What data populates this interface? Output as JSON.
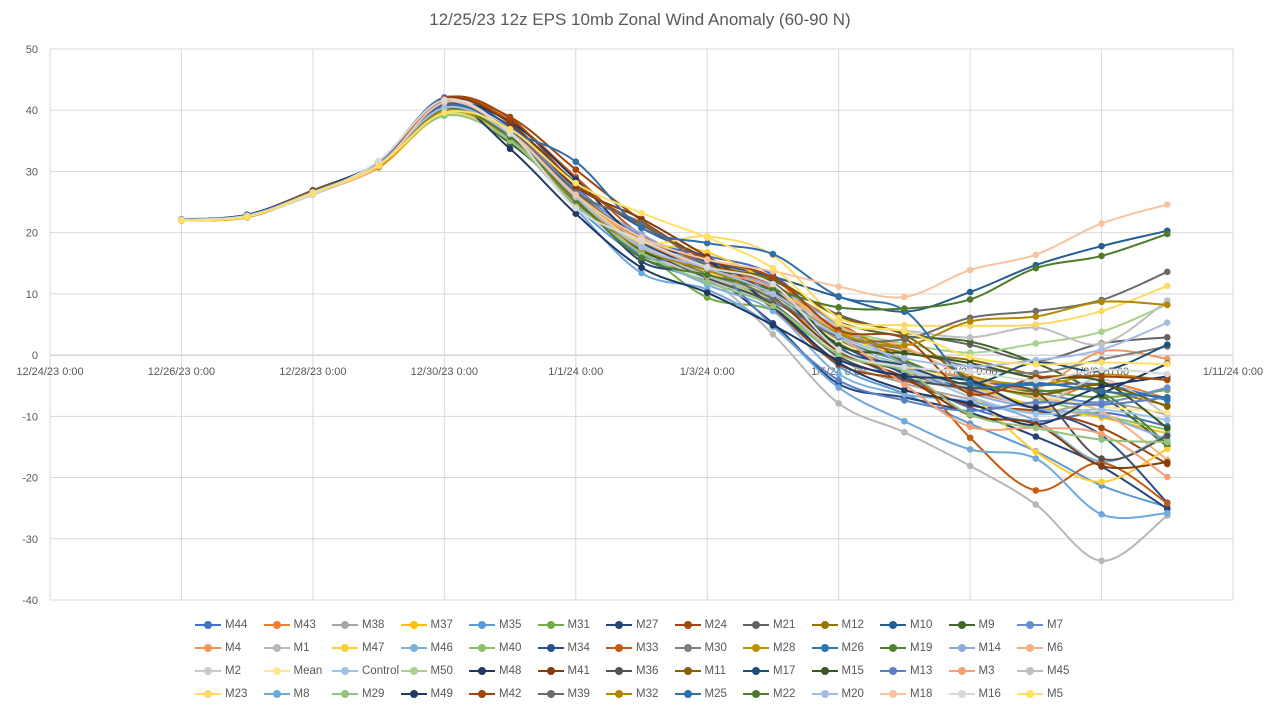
{
  "chart_data": {
    "type": "line",
    "title": "12/25/23 12z EPS 10mb Zonal Wind Anomaly (60-90 N)",
    "x_tick_labels": [
      "12/24/23 0:00",
      "12/26/23 0:00",
      "12/28/23 0:00",
      "12/30/23 0:00",
      "1/1/24 0:00",
      "1/3/24 0:00",
      "1/5/24 0:00",
      "1/7/24 0:00",
      "1/9/24 0:00",
      "1/11/24 0:00"
    ],
    "y_ticks": [
      -40,
      -30,
      -20,
      -10,
      0,
      10,
      20,
      30,
      40,
      50
    ],
    "xlim": [
      "12/24/23 0:00",
      "1/11/24 0:00"
    ],
    "ylim": [
      -40,
      50
    ],
    "grid": true,
    "legend_position": "bottom",
    "x": [
      "12/26/23 0:00",
      "12/27/23 0:00",
      "12/28/23 0:00",
      "12/29/23 0:00",
      "12/30/23 0:00",
      "12/31/23 0:00",
      "1/1/24 0:00",
      "1/2/24 0:00",
      "1/3/24 0:00",
      "1/4/24 0:00",
      "1/5/24 0:00",
      "1/6/24 0:00",
      "1/7/24 0:00",
      "1/8/24 0:00",
      "1/9/24 0:00",
      "1/10/24 0:00"
    ],
    "series": [
      {
        "name": "M44",
        "color": "#4472c4",
        "values": [
          22.2,
          22.9,
          26.8,
          31.6,
          42.1,
          37.2,
          27.4,
          19.1,
          16.2,
          13.1,
          3.3,
          -3.2,
          -8.6,
          -10.8,
          -9.4,
          -11.6
        ]
      },
      {
        "name": "M43",
        "color": "#ed7d31",
        "values": [
          22.0,
          22.6,
          26.6,
          30.8,
          40.6,
          36.8,
          26.9,
          18.4,
          14.7,
          12.5,
          2.6,
          -2.8,
          -5.9,
          -7.8,
          -4.6,
          -7.1
        ]
      },
      {
        "name": "M38",
        "color": "#a5a5a5",
        "values": [
          22.1,
          22.7,
          26.3,
          31.0,
          40.3,
          36.1,
          26.0,
          17.8,
          12.9,
          9.6,
          -0.5,
          -4.6,
          -7.2,
          -9.4,
          -7.8,
          -9.7
        ]
      },
      {
        "name": "M37",
        "color": "#ffc000",
        "values": [
          22.0,
          22.5,
          26.4,
          30.6,
          39.2,
          35.3,
          25.6,
          18.1,
          13.8,
          10.5,
          1.2,
          -2.7,
          -5.1,
          -8.3,
          -10.2,
          -12.8
        ]
      },
      {
        "name": "M35",
        "color": "#5b9bd5",
        "values": [
          22.1,
          22.8,
          26.5,
          31.2,
          40.1,
          35.9,
          24.3,
          15.9,
          12.1,
          8.4,
          -1.8,
          -6.3,
          -11.2,
          -15.7,
          -21.3,
          -24.8
        ]
      },
      {
        "name": "M31",
        "color": "#70ad47",
        "values": [
          22.0,
          22.6,
          26.3,
          30.9,
          39.3,
          35.1,
          24.8,
          17.2,
          9.4,
          7.3,
          0.2,
          -2.4,
          -3.8,
          -5.6,
          -6.9,
          -5.7
        ]
      },
      {
        "name": "M27",
        "color": "#264478",
        "values": [
          22.1,
          22.9,
          26.9,
          31.5,
          41.0,
          35.8,
          26.3,
          15.3,
          13.1,
          5.2,
          -4.7,
          -6.9,
          -9.4,
          -13.3,
          -18.2,
          -25.1
        ]
      },
      {
        "name": "M24",
        "color": "#9e480e",
        "values": [
          22.0,
          22.7,
          26.9,
          31.1,
          41.5,
          38.9,
          30.3,
          22.0,
          15.2,
          7.6,
          -1.5,
          -4.1,
          -8.2,
          -9.1,
          -11.9,
          -17.8
        ]
      },
      {
        "name": "M21",
        "color": "#636363",
        "values": [
          22.1,
          22.7,
          26.6,
          31.3,
          40.5,
          36.4,
          25.8,
          18.2,
          14.1,
          12.1,
          6.6,
          3.7,
          1.7,
          -0.9,
          1.9,
          2.9
        ]
      },
      {
        "name": "M12",
        "color": "#997300",
        "values": [
          22.0,
          22.6,
          26.5,
          30.9,
          40.0,
          35.7,
          25.1,
          17.5,
          13.4,
          10.0,
          3.5,
          0.4,
          -0.8,
          -3.3,
          -5.7,
          -8.2
        ]
      },
      {
        "name": "M10",
        "color": "#255e91",
        "values": [
          22.1,
          22.8,
          26.7,
          31.3,
          40.8,
          36.2,
          26.1,
          18.9,
          15.3,
          12.8,
          9.5,
          7.1,
          10.3,
          14.7,
          17.8,
          20.3
        ]
      },
      {
        "name": "M9",
        "color": "#43682b",
        "values": [
          22.0,
          22.7,
          26.5,
          31.0,
          40.1,
          34.6,
          25.3,
          15.9,
          13.6,
          11.2,
          5.4,
          3.1,
          2.2,
          -1.3,
          -6.6,
          -14.9
        ]
      },
      {
        "name": "M7",
        "color": "#698ed0",
        "values": [
          22.1,
          22.8,
          26.8,
          31.4,
          41.1,
          36.6,
          27.1,
          19.3,
          14.4,
          10.8,
          2.9,
          -1.2,
          -4.2,
          -6.1,
          -7.7,
          -5.3
        ]
      },
      {
        "name": "M4",
        "color": "#f1975a",
        "values": [
          22.0,
          22.6,
          26.4,
          30.7,
          39.8,
          35.6,
          25.7,
          18.6,
          13.2,
          8.9,
          1.7,
          -2.1,
          -3.5,
          -5.4,
          0.6,
          -0.6
        ]
      },
      {
        "name": "M1",
        "color": "#b7b7b7",
        "values": [
          22.1,
          22.7,
          26.2,
          31.1,
          40.4,
          35.8,
          25.2,
          16.4,
          12.7,
          3.4,
          -7.9,
          -12.6,
          -18.1,
          -24.4,
          -33.6,
          -26.2
        ]
      },
      {
        "name": "M47",
        "color": "#ffcd33",
        "values": [
          22.0,
          22.6,
          26.6,
          31.0,
          39.6,
          35.2,
          26.7,
          18.9,
          16.8,
          11.6,
          3.8,
          -0.7,
          -6.4,
          -15.8,
          -20.7,
          -15.3
        ]
      },
      {
        "name": "M46",
        "color": "#7cafdd",
        "values": [
          22.1,
          22.8,
          26.7,
          31.3,
          40.2,
          35.9,
          24.9,
          16.8,
          11.5,
          7.2,
          -3.1,
          -6.4,
          -7.6,
          -10.7,
          -17.4,
          -12.9
        ]
      },
      {
        "name": "M40",
        "color": "#8cc168",
        "values": [
          22.0,
          22.7,
          26.5,
          31.0,
          39.4,
          35.4,
          25.9,
          18.3,
          13.0,
          9.9,
          2.1,
          -1.6,
          -4.4,
          -7.1,
          -9.8,
          -12.2
        ]
      },
      {
        "name": "M34",
        "color": "#2e4f8d",
        "values": [
          22.1,
          22.9,
          26.8,
          31.4,
          40.9,
          37.5,
          28.2,
          20.8,
          15.8,
          9.7,
          1.9,
          -2.9,
          -5.6,
          -8.8,
          -13.1,
          -24.1
        ]
      },
      {
        "name": "M33",
        "color": "#c55a11",
        "values": [
          22.0,
          22.6,
          26.7,
          31.2,
          41.8,
          38.3,
          29.1,
          19.6,
          14.9,
          11.4,
          5.2,
          -1.4,
          -13.5,
          -22.1,
          -17.6,
          -24.2
        ]
      },
      {
        "name": "M30",
        "color": "#7f7f7f",
        "values": [
          22.1,
          22.7,
          26.3,
          31.1,
          40.3,
          36.0,
          25.4,
          17.3,
          13.3,
          8.7,
          3.1,
          0.9,
          -1.9,
          -2.9,
          -0.7,
          1.4
        ]
      },
      {
        "name": "M28",
        "color": "#bf9000",
        "values": [
          22.0,
          22.5,
          26.4,
          30.7,
          39.7,
          35.5,
          25.5,
          17.6,
          12.8,
          9.3,
          3.9,
          1.1,
          -3.4,
          -4.8,
          -3.2,
          -4.1
        ]
      },
      {
        "name": "M26",
        "color": "#2e75b6",
        "values": [
          22.1,
          22.8,
          26.6,
          31.2,
          40.7,
          36.1,
          26.8,
          18.7,
          13.9,
          10.1,
          1.4,
          -3.9,
          -4.6,
          -4.9,
          -4.8,
          -7.4
        ]
      },
      {
        "name": "M19",
        "color": "#548235",
        "values": [
          22.0,
          22.7,
          26.5,
          31.0,
          40.0,
          35.2,
          25.8,
          17.9,
          13.5,
          9.4,
          2.4,
          -0.9,
          -5.1,
          -5.9,
          -6.2,
          -14.5
        ]
      },
      {
        "name": "M14",
        "color": "#8faadc",
        "values": [
          22.1,
          22.8,
          26.7,
          31.3,
          41.2,
          36.6,
          26.4,
          19.8,
          14.3,
          11.3,
          4.9,
          -1.6,
          -6.2,
          -8.7,
          -9.9,
          -13.8
        ]
      },
      {
        "name": "M6",
        "color": "#f4b183",
        "values": [
          22.0,
          22.6,
          26.4,
          30.8,
          39.7,
          35.7,
          25.3,
          18.5,
          13.7,
          10.4,
          4.6,
          1.3,
          -3.7,
          -6.8,
          -9.2,
          -17.1
        ]
      },
      {
        "name": "M2",
        "color": "#c9c9c9",
        "values": [
          22.1,
          22.7,
          26.2,
          31.0,
          40.1,
          35.6,
          24.7,
          17.1,
          12.4,
          8.1,
          0.7,
          -2.3,
          -5.3,
          -8.1,
          -3.9,
          -9.8
        ]
      },
      {
        "name": "Mean",
        "color": "#ffe699",
        "values": [
          22.0,
          22.6,
          26.5,
          31.0,
          40.2,
          35.8,
          25.9,
          18.1,
          13.6,
          9.5,
          2.2,
          -1.8,
          -4.3,
          -6.5,
          -8.4,
          -9.3
        ]
      },
      {
        "name": "Control",
        "color": "#9dc3e6",
        "values": [
          22.1,
          22.8,
          26.6,
          31.2,
          40.5,
          36.3,
          25.7,
          18.3,
          14.0,
          10.3,
          2.8,
          -2.2,
          -6.8,
          -9.6,
          -8.9,
          -10.6
        ]
      },
      {
        "name": "M50",
        "color": "#a9d18e",
        "values": [
          22.0,
          22.6,
          26.4,
          30.9,
          39.5,
          35.3,
          25.1,
          17.8,
          12.9,
          9.1,
          4.3,
          1.9,
          0.4,
          1.9,
          3.8,
          8.3
        ]
      },
      {
        "name": "M48",
        "color": "#1f3864",
        "values": [
          22.1,
          22.9,
          26.9,
          31.5,
          40.9,
          38.1,
          28.7,
          18.6,
          15.4,
          7.9,
          -1.2,
          -5.7,
          -7.9,
          -11.4,
          -6.3,
          -1.4
        ]
      },
      {
        "name": "M41",
        "color": "#843c0c",
        "values": [
          22.0,
          22.7,
          26.8,
          31.3,
          41.7,
          37.9,
          27.5,
          22.3,
          16.1,
          9.5,
          0.6,
          -3.6,
          -9.8,
          -11.3,
          -18.1,
          -17.5
        ]
      },
      {
        "name": "M36",
        "color": "#525252",
        "values": [
          22.1,
          22.7,
          26.5,
          31.2,
          40.4,
          36.0,
          25.0,
          17.7,
          12.6,
          8.3,
          -0.2,
          -3.8,
          -5.4,
          -6.0,
          -16.9,
          -13.2
        ]
      },
      {
        "name": "M11",
        "color": "#806000",
        "values": [
          22.0,
          22.6,
          26.6,
          31.0,
          40.0,
          36.5,
          26.5,
          19.0,
          14.6,
          12.4,
          6.3,
          3.3,
          -3.9,
          -6.4,
          -4.9,
          -8.4
        ]
      },
      {
        "name": "M17",
        "color": "#1f4e79",
        "values": [
          22.1,
          22.8,
          26.7,
          31.4,
          40.6,
          36.2,
          25.6,
          18.4,
          13.9,
          10.6,
          1.0,
          -1.7,
          -4.7,
          -1.2,
          -2.6,
          1.7
        ]
      },
      {
        "name": "M15",
        "color": "#385723",
        "values": [
          22.0,
          22.7,
          26.6,
          31.1,
          40.3,
          35.4,
          26.2,
          17.1,
          14.0,
          11.8,
          1.6,
          0.3,
          -1.3,
          -3.7,
          -4.3,
          -11.9
        ]
      },
      {
        "name": "M13",
        "color": "#5b7fc4",
        "values": [
          22.1,
          22.8,
          26.7,
          31.3,
          41.0,
          36.7,
          26.1,
          16.3,
          14.8,
          4.8,
          -4.1,
          -7.4,
          -9.1,
          -7.7,
          -8.1,
          -6.9
        ]
      },
      {
        "name": "M3",
        "color": "#f4a074",
        "values": [
          22.0,
          22.6,
          26.4,
          30.7,
          39.9,
          35.5,
          25.6,
          18.7,
          14.1,
          10.9,
          3.4,
          -4.8,
          -11.7,
          -11.9,
          -12.9,
          -19.9
        ]
      },
      {
        "name": "M45",
        "color": "#bfbfbf",
        "values": [
          22.1,
          22.7,
          26.3,
          31.0,
          40.2,
          35.9,
          25.3,
          18.0,
          12.9,
          9.8,
          5.0,
          4.0,
          2.9,
          4.5,
          1.8,
          8.9
        ]
      },
      {
        "name": "M23",
        "color": "#ffd966",
        "values": [
          22.0,
          22.6,
          26.5,
          30.9,
          39.4,
          35.1,
          25.9,
          18.5,
          19.4,
          16.3,
          6.1,
          4.9,
          4.8,
          5.0,
          7.2,
          11.3
        ]
      },
      {
        "name": "M8",
        "color": "#6fa8dc",
        "values": [
          22.1,
          22.8,
          26.7,
          31.3,
          40.8,
          35.3,
          23.9,
          13.4,
          10.7,
          4.6,
          -5.3,
          -10.8,
          -15.4,
          -16.9,
          -26.0,
          -25.8
        ]
      },
      {
        "name": "M29",
        "color": "#93c47d",
        "values": [
          22.0,
          22.7,
          26.5,
          31.0,
          39.1,
          35.0,
          24.6,
          16.7,
          11.9,
          8.0,
          0.1,
          -2.6,
          -9.7,
          -11.9,
          -13.8,
          -14.2
        ]
      },
      {
        "name": "M49",
        "color": "#203864",
        "values": [
          22.1,
          22.9,
          26.8,
          31.5,
          41.3,
          33.7,
          23.1,
          14.3,
          10.2,
          4.9,
          -0.8,
          -3.4,
          -4.2,
          -8.6,
          -5.2,
          -3.5
        ]
      },
      {
        "name": "M42",
        "color": "#a0460a",
        "values": [
          22.0,
          22.7,
          26.9,
          31.2,
          41.9,
          38.7,
          28.0,
          21.3,
          15.7,
          12.7,
          4.1,
          2.7,
          -6.3,
          -3.7,
          -3.5,
          -4.0
        ]
      },
      {
        "name": "M39",
        "color": "#6b6b6b",
        "values": [
          22.1,
          22.7,
          26.4,
          31.1,
          40.7,
          36.8,
          26.6,
          21.6,
          14.5,
          9.2,
          3.0,
          2.6,
          6.1,
          7.2,
          9.0,
          13.6
        ]
      },
      {
        "name": "M32",
        "color": "#b38600",
        "values": [
          22.0,
          22.6,
          26.6,
          30.8,
          39.8,
          35.6,
          25.2,
          17.4,
          13.8,
          10.1,
          3.6,
          1.6,
          5.5,
          6.3,
          8.7,
          8.2
        ]
      },
      {
        "name": "M25",
        "color": "#2f6fa9",
        "values": [
          22.1,
          22.8,
          26.7,
          31.3,
          40.9,
          36.5,
          31.6,
          20.8,
          18.3,
          16.5,
          9.6,
          7.3,
          -4.5,
          -4.5,
          -5.9,
          -6.9
        ]
      },
      {
        "name": "M22",
        "color": "#4e7a2c",
        "values": [
          22.0,
          22.7,
          26.5,
          31.1,
          40.2,
          35.7,
          25.4,
          15.9,
          13.1,
          10.7,
          7.8,
          7.6,
          9.1,
          14.2,
          16.2,
          19.8
        ]
      },
      {
        "name": "M20",
        "color": "#a4bde6",
        "values": [
          22.1,
          22.8,
          26.6,
          31.2,
          40.4,
          36.1,
          25.8,
          17.6,
          14.2,
          10.0,
          3.2,
          -0.5,
          -1.8,
          -0.8,
          0.9,
          5.3
        ]
      },
      {
        "name": "M18",
        "color": "#f8c3a0",
        "values": [
          22.0,
          22.6,
          26.5,
          30.9,
          41.3,
          36.4,
          26.2,
          19.2,
          15.6,
          13.7,
          11.2,
          9.5,
          13.9,
          16.4,
          21.5,
          24.6
        ]
      },
      {
        "name": "M16",
        "color": "#d9d9d9",
        "values": [
          22.1,
          22.7,
          26.3,
          31.7,
          41.7,
          36.3,
          24.0,
          18.8,
          14.4,
          11.6,
          0.9,
          -1.9,
          -2.7,
          -4.1,
          -2.4,
          -3.1
        ]
      },
      {
        "name": "M5",
        "color": "#ffe066",
        "values": [
          22.0,
          22.6,
          26.5,
          31.0,
          39.6,
          36.9,
          28.1,
          23.2,
          19.2,
          14.2,
          5.3,
          3.9,
          -0.3,
          -1.5,
          -1.2,
          -1.5
        ]
      }
    ]
  }
}
